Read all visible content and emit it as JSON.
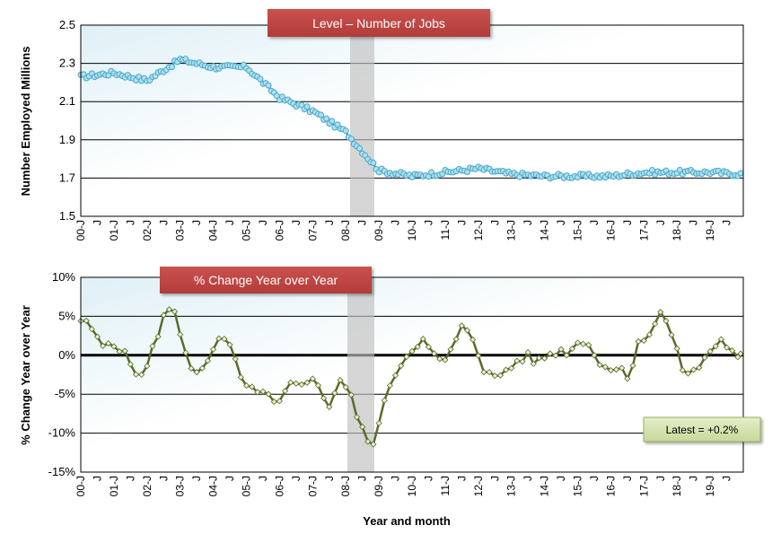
{
  "chart_data": [
    {
      "type": "line",
      "title": "Level – Number of Jobs",
      "ylabel": "Number Employed Millions",
      "xlabel": "",
      "ylim": [
        1.5,
        2.5
      ],
      "yticks": [
        "1.5",
        "1.7",
        "1.9",
        "2.1",
        "2.3",
        "2.5"
      ],
      "xticks": [
        "00-J",
        "J",
        "01-J",
        "J",
        "02-J",
        "J",
        "03-J",
        "J",
        "04-J",
        "J",
        "05-J",
        "J",
        "06-J",
        "J",
        "07-J",
        "J",
        "08-J",
        "J",
        "09-J",
        "J",
        "10-J",
        "J",
        "11-J",
        "J",
        "12-J",
        "J",
        "13-J",
        "J",
        "14-J",
        "J",
        "15-J",
        "J",
        "16-J",
        "J",
        "17-J",
        "J",
        "18-J",
        "J",
        "19-J",
        "J"
      ],
      "grid": true,
      "shaded_period": "2008–2009 recession",
      "annual_anchors": [
        2.23,
        2.25,
        2.21,
        2.32,
        2.28,
        2.28,
        2.12,
        2.05,
        1.94,
        1.74,
        1.71,
        1.73,
        1.75,
        1.72,
        1.71,
        1.71,
        1.71,
        1.73,
        1.73,
        1.73,
        1.72
      ],
      "series": [
        {
          "name": "",
          "color": "#4aa8c8"
        }
      ]
    },
    {
      "type": "line",
      "title": "% Change Year over Year",
      "ylabel": "% Change Year over Year",
      "xlabel": "Year and month",
      "ylim": [
        -15,
        10
      ],
      "yticks": [
        "-15%",
        "-10%",
        "-5%",
        "0%",
        "5%",
        "10%"
      ],
      "xticks": [
        "00-J",
        "J",
        "01-J",
        "J",
        "02-J",
        "J",
        "03-J",
        "J",
        "04-J",
        "J",
        "05-J",
        "J",
        "06-J",
        "J",
        "07-J",
        "J",
        "08-J",
        "J",
        "09-J",
        "J",
        "10-J",
        "J",
        "11-J",
        "J",
        "12-J",
        "J",
        "13-J",
        "J",
        "14-J",
        "J",
        "15-J",
        "J",
        "16-J",
        "J",
        "17-J",
        "J",
        "18-J",
        "J",
        "19-J",
        "J"
      ],
      "grid": true,
      "shaded_period": "2008–2009 recession",
      "annotation": "Latest = +0.2%",
      "values_pct_by_period": [
        4.5,
        3.5,
        1.0,
        2.0,
        0.5,
        -1.5,
        -3.0,
        1.0,
        5.0,
        6.0,
        1.0,
        -2.5,
        -2.0,
        1.5,
        2.0,
        -1.0,
        -4.0,
        -5.0,
        -5.0,
        -7.0,
        -4.0,
        -3.5,
        -3.0,
        -4.0,
        -6.5,
        -3.0,
        -5.0,
        -9.0,
        -12.0,
        -8.0,
        -3.0,
        -1.0,
        1.0,
        2.0,
        0.0,
        -1.0,
        1.0,
        4.0,
        2.0,
        -2.0,
        -3.0,
        -2.0,
        -1.0,
        0.0,
        -1.0,
        0.0,
        0.5,
        0.5,
        1.5,
        2.0,
        -1.0,
        -2.0,
        -1.0,
        -3.0,
        2.0,
        3.0,
        5.5,
        3.0,
        -1.5,
        -2.5,
        -1.0,
        1.0,
        2.0,
        0.2
      ],
      "series": [
        {
          "name": "",
          "color": "#5a6b2a"
        }
      ]
    }
  ]
}
